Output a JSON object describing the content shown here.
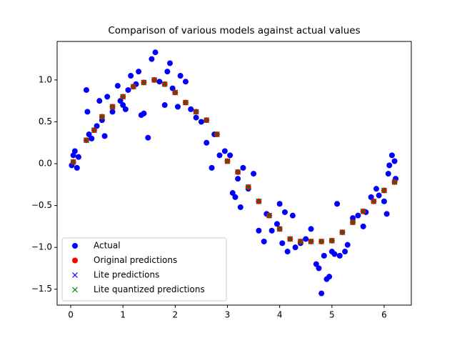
{
  "chart_data": {
    "type": "scatter",
    "title": "Comparison of various models against actual values",
    "xlim": [
      -0.26,
      6.52
    ],
    "ylim": [
      -1.69,
      1.46
    ],
    "xticks": [
      0,
      1,
      2,
      3,
      4,
      5,
      6
    ],
    "yticks": [
      {
        "value": -1.5,
        "label": "−1.5"
      },
      {
        "value": -1.0,
        "label": "−1.0"
      },
      {
        "value": -0.5,
        "label": "−0.5"
      },
      {
        "value": 0.0,
        "label": "0.0"
      },
      {
        "value": 0.5,
        "label": "0.5"
      },
      {
        "value": 1.0,
        "label": "1.0"
      }
    ],
    "grid": false,
    "legend_position": "lower-left",
    "series": [
      {
        "name": "Actual",
        "color": "#0000ff",
        "marker": "o",
        "x": [
          0.02,
          0.05,
          0.08,
          0.12,
          0.15,
          0.3,
          0.32,
          0.35,
          0.4,
          0.5,
          0.55,
          0.6,
          0.65,
          0.7,
          0.8,
          0.9,
          0.95,
          1.0,
          1.05,
          1.1,
          1.15,
          1.25,
          1.3,
          1.35,
          1.4,
          1.48,
          1.55,
          1.62,
          1.7,
          1.8,
          1.85,
          1.9,
          1.95,
          2.05,
          2.1,
          2.2,
          2.3,
          2.4,
          2.5,
          2.6,
          2.7,
          2.75,
          2.85,
          2.95,
          3.05,
          3.1,
          3.15,
          3.2,
          3.25,
          3.3,
          3.4,
          3.5,
          3.6,
          3.7,
          3.75,
          3.85,
          3.95,
          4.0,
          4.05,
          4.1,
          4.15,
          4.25,
          4.3,
          4.4,
          4.5,
          4.6,
          4.7,
          4.75,
          4.8,
          4.85,
          4.9,
          4.95,
          5.0,
          5.05,
          5.1,
          5.15,
          5.25,
          5.3,
          5.4,
          5.5,
          5.6,
          5.65,
          5.75,
          5.85,
          5.9,
          6.0,
          6.05,
          6.08,
          6.1,
          6.15,
          6.2,
          6.22
        ],
        "y": [
          -0.02,
          0.1,
          0.15,
          -0.05,
          0.08,
          0.88,
          0.62,
          0.35,
          0.3,
          0.45,
          0.75,
          0.52,
          0.33,
          0.8,
          0.62,
          0.93,
          0.75,
          0.7,
          0.65,
          0.88,
          1.05,
          0.95,
          1.1,
          0.58,
          0.6,
          0.31,
          1.25,
          1.33,
          0.98,
          0.7,
          1.1,
          1.2,
          0.9,
          0.68,
          1.05,
          0.98,
          0.65,
          0.55,
          0.5,
          0.25,
          -0.05,
          0.35,
          0.1,
          0.15,
          0.1,
          -0.35,
          -0.4,
          -0.18,
          -0.52,
          -0.05,
          -0.3,
          -0.12,
          -0.8,
          -0.93,
          -0.6,
          -0.8,
          -0.72,
          -0.48,
          -0.95,
          -0.58,
          -1.05,
          -0.62,
          -1.0,
          -0.95,
          -0.9,
          -0.78,
          -1.2,
          -1.25,
          -1.55,
          -1.1,
          -1.38,
          -1.35,
          -1.05,
          -1.08,
          -0.48,
          -1.1,
          -1.05,
          -0.97,
          -0.65,
          -0.62,
          -0.75,
          -0.58,
          -0.4,
          -0.3,
          -0.38,
          -0.45,
          -0.6,
          -0.12,
          -0.02,
          0.1,
          0.03,
          -0.18
        ]
      },
      {
        "name": "Original predictions",
        "color": "#ff0000",
        "marker": "o",
        "x": [
          0.05,
          0.3,
          0.45,
          0.6,
          0.8,
          1.0,
          1.2,
          1.4,
          1.6,
          1.8,
          2.0,
          2.2,
          2.4,
          2.6,
          2.8,
          3.0,
          3.2,
          3.4,
          3.6,
          3.8,
          4.0,
          4.2,
          4.4,
          4.6,
          4.8,
          5.0,
          5.2,
          5.4,
          5.6,
          5.8,
          6.0,
          6.2
        ],
        "y": [
          0.02,
          0.28,
          0.4,
          0.56,
          0.68,
          0.8,
          0.92,
          0.97,
          1.0,
          0.95,
          0.85,
          0.73,
          0.62,
          0.52,
          0.35,
          0.03,
          -0.1,
          -0.28,
          -0.45,
          -0.62,
          -0.78,
          -0.9,
          -0.93,
          -0.93,
          -0.93,
          -0.92,
          -0.82,
          -0.7,
          -0.57,
          -0.45,
          -0.32,
          -0.22
        ]
      },
      {
        "name": "Lite predictions",
        "color": "#0000ff",
        "marker": "x",
        "x": [
          0.05,
          0.3,
          0.45,
          0.6,
          0.8,
          1.0,
          1.2,
          1.4,
          1.6,
          1.8,
          2.0,
          2.2,
          2.4,
          2.6,
          2.8,
          3.0,
          3.2,
          3.4,
          3.6,
          3.8,
          4.0,
          4.2,
          4.4,
          4.6,
          4.8,
          5.0,
          5.2,
          5.4,
          5.6,
          5.8,
          6.0,
          6.2
        ],
        "y": [
          0.02,
          0.28,
          0.4,
          0.56,
          0.68,
          0.8,
          0.92,
          0.97,
          1.0,
          0.95,
          0.85,
          0.73,
          0.62,
          0.52,
          0.35,
          0.03,
          -0.1,
          -0.28,
          -0.45,
          -0.62,
          -0.78,
          -0.9,
          -0.93,
          -0.93,
          -0.93,
          -0.92,
          -0.82,
          -0.7,
          -0.57,
          -0.45,
          -0.32,
          -0.22
        ]
      },
      {
        "name": "Lite quantized predictions",
        "color": "#008000",
        "marker": "x",
        "x": [
          0.05,
          0.3,
          0.45,
          0.6,
          0.8,
          1.0,
          1.2,
          1.4,
          1.6,
          1.8,
          2.0,
          2.2,
          2.4,
          2.6,
          2.8,
          3.0,
          3.2,
          3.4,
          3.6,
          3.8,
          4.0,
          4.2,
          4.4,
          4.6,
          4.8,
          5.0,
          5.2,
          5.4,
          5.6,
          5.8,
          6.0,
          6.2
        ],
        "y": [
          0.02,
          0.28,
          0.4,
          0.56,
          0.68,
          0.8,
          0.92,
          0.97,
          1.0,
          0.95,
          0.85,
          0.73,
          0.62,
          0.52,
          0.35,
          0.03,
          -0.1,
          -0.28,
          -0.45,
          -0.62,
          -0.78,
          -0.9,
          -0.93,
          -0.93,
          -0.93,
          -0.92,
          -0.82,
          -0.7,
          -0.57,
          -0.45,
          -0.32,
          -0.22
        ]
      }
    ]
  }
}
